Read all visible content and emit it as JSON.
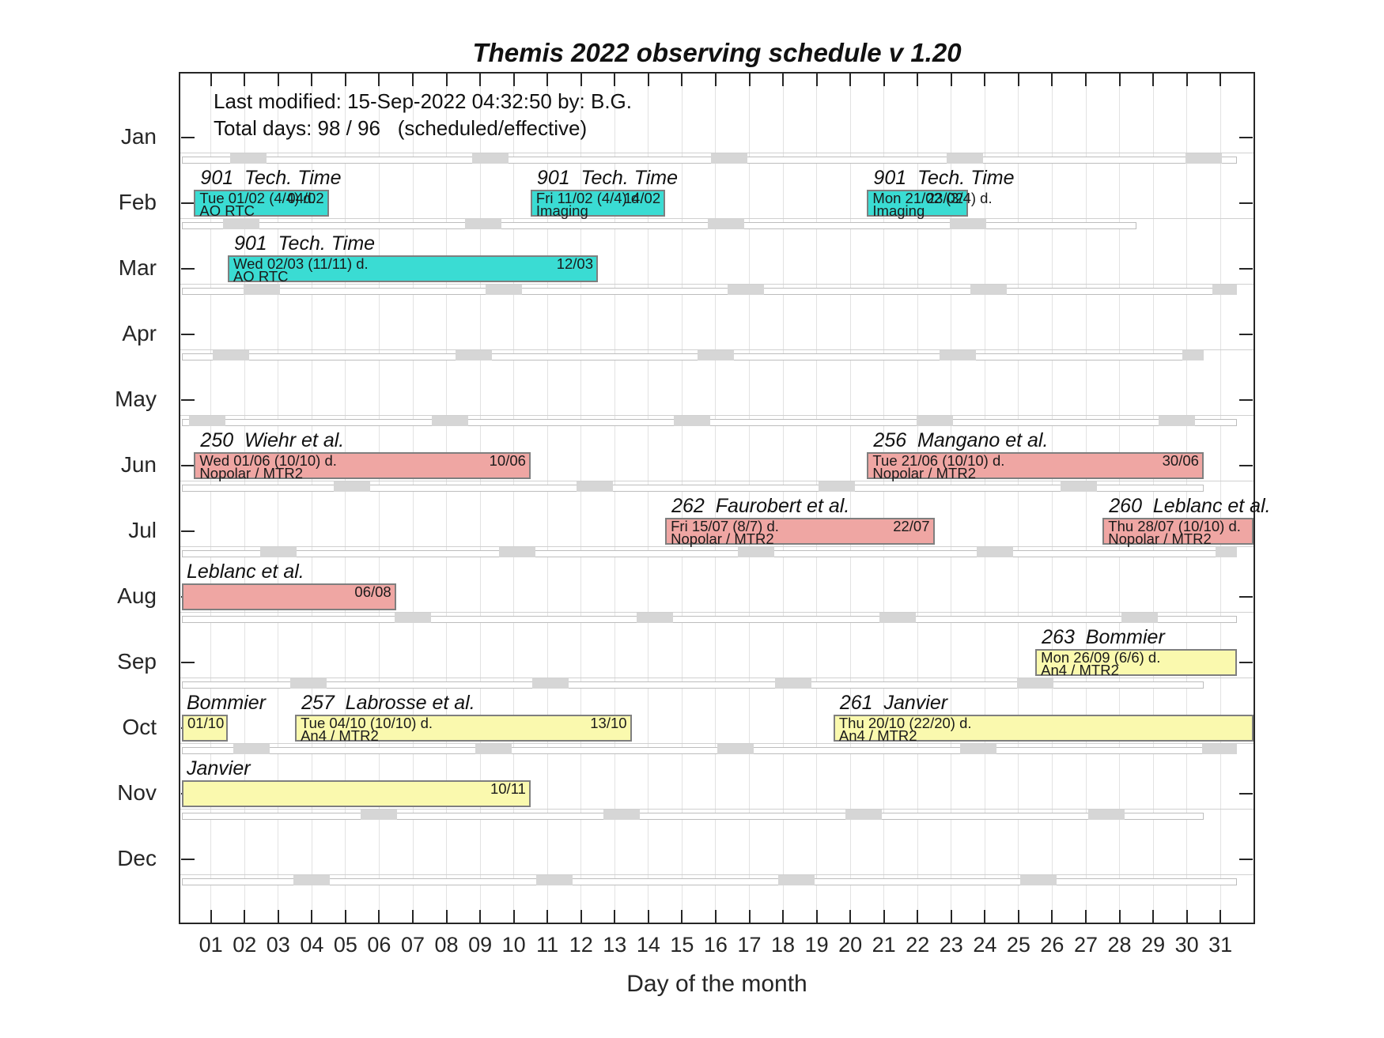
{
  "header": {
    "info_line1": "Last modified: 15-Sep-2022 04:32:50 by: B.G.",
    "info_line2": "Total days: 98 / 96   (scheduled/effective)"
  },
  "colors": {
    "tech_time": "#3adcd3",
    "nopolar": "#efa6a3",
    "an4": "#faf9ae",
    "bar_border": "#7f7f7f",
    "axis": "#262626",
    "grid": "#e2e2e2",
    "moon_block": "#d6d6d6"
  },
  "chart_data": {
    "type": "gantt",
    "title": "Themis 2022 observing schedule v 1.20",
    "xlabel": "Day of the month",
    "x_ticks": [
      "01",
      "02",
      "03",
      "04",
      "05",
      "06",
      "07",
      "08",
      "09",
      "10",
      "11",
      "12",
      "13",
      "14",
      "15",
      "16",
      "17",
      "18",
      "19",
      "20",
      "21",
      "22",
      "23",
      "24",
      "25",
      "26",
      "27",
      "28",
      "29",
      "30",
      "31"
    ],
    "y_categories": [
      "Jan",
      "Feb",
      "Mar",
      "Apr",
      "May",
      "Jun",
      "Jul",
      "Aug",
      "Sep",
      "Oct",
      "Nov",
      "Dec"
    ],
    "month_days": [
      31,
      28,
      31,
      30,
      31,
      30,
      31,
      31,
      30,
      31,
      30,
      31
    ],
    "moon_quarter_days": [
      [
        2.1,
        9.3,
        16.4,
        23.4,
        30.5
      ],
      [
        1.9,
        9.1,
        16.3,
        23.5
      ],
      [
        2.5,
        9.7,
        16.9,
        24.1,
        31.3
      ],
      [
        1.6,
        8.8,
        16.0,
        23.2,
        30.4
      ],
      [
        0.9,
        8.1,
        15.3,
        22.5,
        29.7
      ],
      [
        5.2,
        12.4,
        19.6,
        26.8
      ],
      [
        3.0,
        10.1,
        17.2,
        24.3,
        31.4
      ],
      [
        7.0,
        14.2,
        21.4,
        28.6
      ],
      [
        3.9,
        11.1,
        18.3,
        25.5
      ],
      [
        2.2,
        9.4,
        16.6,
        23.8,
        31.0
      ],
      [
        6.0,
        13.2,
        20.4,
        27.6
      ],
      [
        4.0,
        11.2,
        18.4,
        25.6
      ]
    ],
    "bars": [
      {
        "month": 2,
        "start": 0.5,
        "end": 4.5,
        "color_key": "tech_time",
        "title": "901  Tech. Time",
        "line1": "Tue 01/02 (4/4) d.",
        "line2": "AO RTC",
        "end_label": "04/02",
        "clip_left": false,
        "clip_right": false,
        "title_at_axis_start": false
      },
      {
        "month": 2,
        "start": 10.5,
        "end": 14.5,
        "color_key": "tech_time",
        "title": "901  Tech. Time",
        "line1": "Fri 11/02 (4/4) d.",
        "line2": "Imaging",
        "end_label": "14/02",
        "clip_left": false,
        "clip_right": false,
        "title_at_axis_start": false
      },
      {
        "month": 2,
        "start": 20.5,
        "end": 23.5,
        "color_key": "tech_time",
        "title": "901  Tech. Time",
        "line1": "Mon 21/02 (3/4) d.",
        "line2": "Imaging",
        "end_label": "23/02",
        "clip_left": false,
        "clip_right": false,
        "title_at_axis_start": false
      },
      {
        "month": 3,
        "start": 1.5,
        "end": 12.5,
        "color_key": "tech_time",
        "title": "901  Tech. Time",
        "line1": "Wed 02/03 (11/11) d.",
        "line2": "AO RTC",
        "end_label": "12/03",
        "clip_left": false,
        "clip_right": false,
        "title_at_axis_start": false
      },
      {
        "month": 6,
        "start": 0.5,
        "end": 10.5,
        "color_key": "nopolar",
        "title": "250  Wiehr et al.",
        "line1": "Wed 01/06 (10/10) d.",
        "line2": "Nopolar / MTR2",
        "end_label": "10/06",
        "clip_left": false,
        "clip_right": false,
        "title_at_axis_start": false
      },
      {
        "month": 6,
        "start": 20.5,
        "end": 30.5,
        "color_key": "nopolar",
        "title": "256  Mangano et al.",
        "line1": "Tue 21/06 (10/10) d.",
        "line2": "Nopolar / MTR2",
        "end_label": "30/06",
        "clip_left": false,
        "clip_right": false,
        "title_at_axis_start": false
      },
      {
        "month": 7,
        "start": 14.5,
        "end": 22.5,
        "color_key": "nopolar",
        "title": "262  Faurobert et al.",
        "line1": "Fri 15/07 (8/7) d.",
        "line2": "Nopolar / MTR2",
        "end_label": "22/07",
        "clip_left": false,
        "clip_right": false,
        "title_at_axis_start": false
      },
      {
        "month": 7,
        "start": 27.5,
        "end": 32,
        "color_key": "nopolar",
        "title": "260  Leblanc et al.",
        "line1": "Thu 28/07 (10/10) d.",
        "line2": "Nopolar / MTR2",
        "end_label": "",
        "clip_left": false,
        "clip_right": true,
        "title_at_axis_start": false
      },
      {
        "month": 8,
        "start": 0,
        "end": 6.5,
        "color_key": "nopolar",
        "title": "Leblanc et al.",
        "line1": "",
        "line2": "",
        "end_label": "06/08",
        "clip_left": true,
        "clip_right": false,
        "title_at_axis_start": true
      },
      {
        "month": 9,
        "start": 25.5,
        "end": 31.5,
        "color_key": "an4",
        "title": "263  Bommier",
        "line1": "Mon 26/09 (6/6) d.",
        "line2": "An4 / MTR2",
        "end_label": "",
        "clip_left": false,
        "clip_right": false,
        "title_at_axis_start": false
      },
      {
        "month": 10,
        "start": 0,
        "end": 1.5,
        "color_key": "an4",
        "title": "Bommier",
        "line1": "01/10",
        "line2": "",
        "end_label": "",
        "clip_left": true,
        "clip_right": false,
        "title_at_axis_start": true
      },
      {
        "month": 10,
        "start": 3.5,
        "end": 13.5,
        "color_key": "an4",
        "title": "257  Labrosse et al.",
        "line1": "Tue 04/10 (10/10) d.",
        "line2": "An4 / MTR2",
        "end_label": "13/10",
        "clip_left": false,
        "clip_right": false,
        "title_at_axis_start": false
      },
      {
        "month": 10,
        "start": 19.5,
        "end": 32,
        "color_key": "an4",
        "title": "261  Janvier",
        "line1": "Thu 20/10 (22/20) d.",
        "line2": "An4 / MTR2",
        "end_label": "",
        "clip_left": false,
        "clip_right": true,
        "title_at_axis_start": false
      },
      {
        "month": 11,
        "start": 0,
        "end": 10.5,
        "color_key": "an4",
        "title": "Janvier",
        "line1": "",
        "line2": "",
        "end_label": "10/11",
        "clip_left": true,
        "clip_right": false,
        "title_at_axis_start": true
      }
    ]
  }
}
